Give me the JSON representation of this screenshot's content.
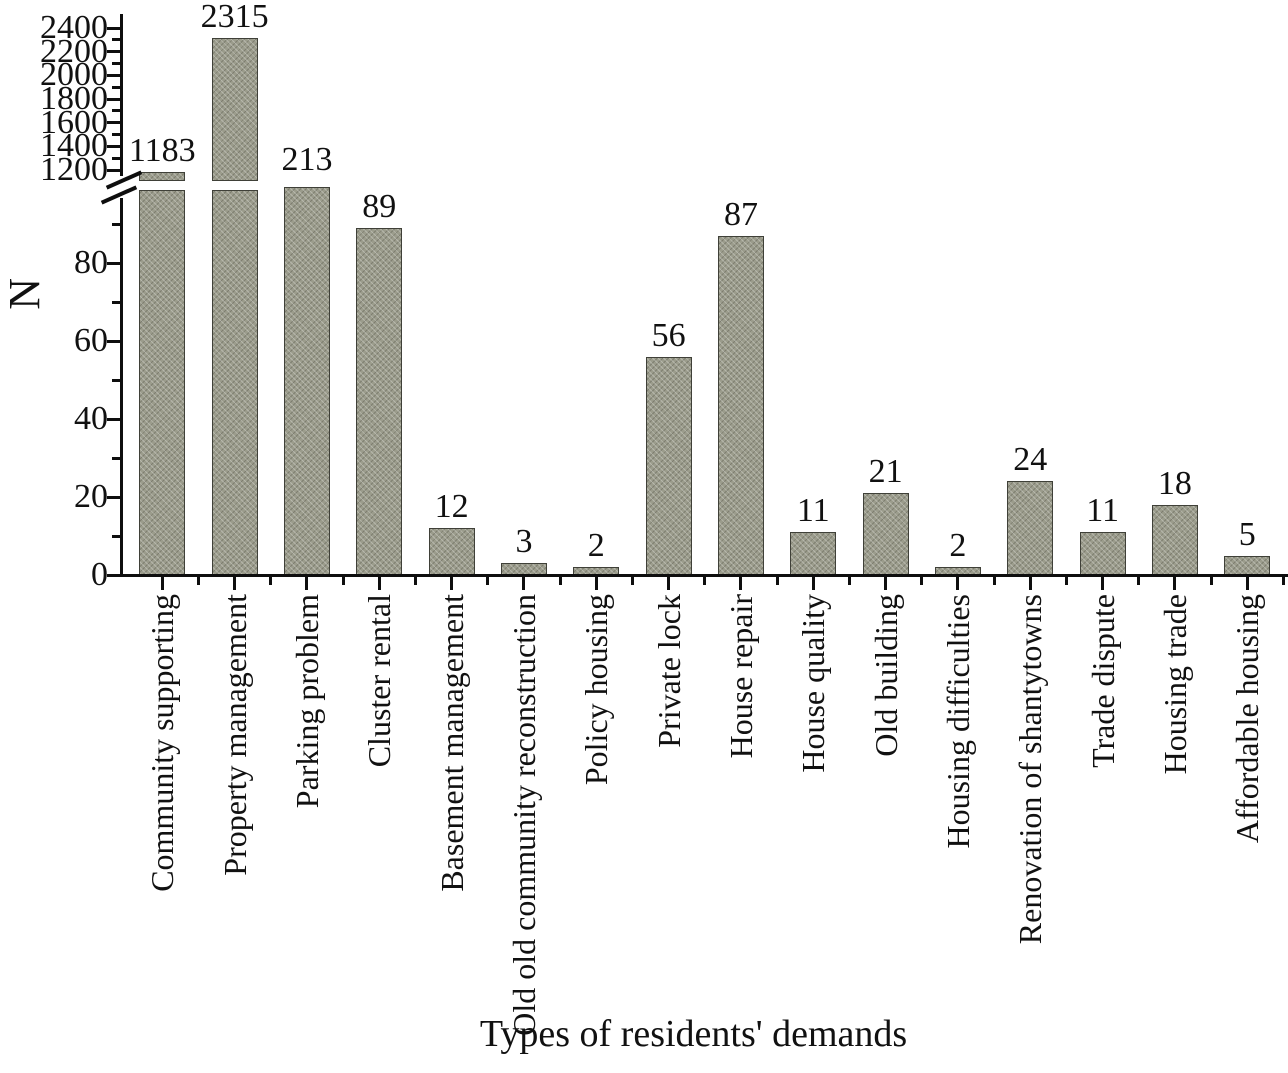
{
  "figure": {
    "background": "#ffffff",
    "text_color": "#111111",
    "axis_color": "#0e0e0e"
  },
  "chart_data": {
    "type": "bar",
    "title": "",
    "xlabel": "Types of residents' demands",
    "ylabel": "N",
    "categories": [
      "Community supporting",
      "Property management",
      "Parking problem",
      "Cluster rental",
      "Basement management",
      "Old old community reconstruction",
      "Policy housing",
      "Private lock",
      "House repair",
      "House quality",
      "Old building",
      "Housing difficulties",
      "Renovation of shantytowns",
      "Trade dispute",
      "Housing trade",
      "Affordable housing"
    ],
    "values": [
      1183,
      2315,
      213,
      89,
      12,
      3,
      2,
      56,
      87,
      11,
      21,
      2,
      24,
      11,
      18,
      5
    ],
    "value_labels_shown": true,
    "bar_color": "#9b9c8c",
    "bar_border_color": "#3f4038",
    "bar_pattern": "fine-dot-hatch",
    "grid": false,
    "legend": null,
    "axis_break": {
      "between": [
        100,
        1200
      ],
      "lower_axis": {
        "range": [
          0,
          100
        ],
        "major_ticks": [
          0,
          20,
          40,
          60,
          80
        ],
        "minor_ticks": [
          10,
          30,
          50,
          70,
          90
        ]
      },
      "upper_axis": {
        "range": [
          1200,
          2450
        ],
        "major_ticks": [
          1200,
          1400,
          1600,
          1800,
          2000,
          2200,
          2400
        ],
        "minor_ticks": [
          1300,
          1500,
          1700,
          1900,
          2100,
          2300
        ]
      }
    }
  }
}
